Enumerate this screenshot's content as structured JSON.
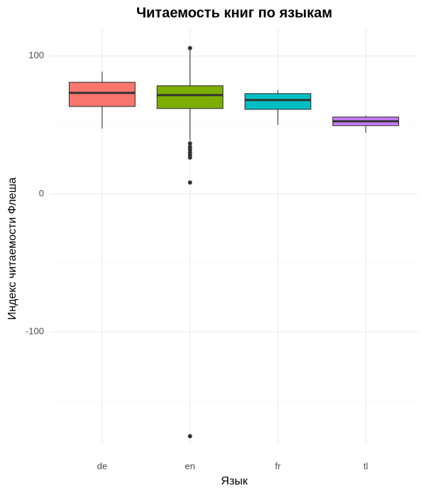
{
  "chart_data": {
    "type": "box",
    "title": "Читаемость книг по языкам",
    "x_label": "Язык",
    "y_label": "Индекс читаемости Флеша",
    "categories": [
      "de",
      "en",
      "fr",
      "tl"
    ],
    "colors": [
      "#F8766D",
      "#7CAE00",
      "#00BFC4",
      "#C77CFF"
    ],
    "whisker_low": [
      47.4,
      38.7,
      50,
      44.3
    ],
    "q1": [
      63.4,
      61.9,
      61.3,
      49.5
    ],
    "median": [
      73.2,
      71.6,
      68,
      52.6
    ],
    "q3": [
      80.9,
      78.4,
      72.7,
      55.7
    ],
    "whisker_high": [
      88.7,
      104,
      75.3,
      56.7
    ],
    "outliers": [
      [],
      [
        105.7,
        36.6,
        34,
        32,
        30,
        28,
        26.3,
        8.2,
        -175.8
      ],
      [],
      []
    ],
    "ylim": [
      -182,
      120
    ],
    "yticks": [
      -100,
      0,
      100
    ],
    "minor_yticks": [
      -150,
      -50,
      50
    ],
    "grid": true
  }
}
